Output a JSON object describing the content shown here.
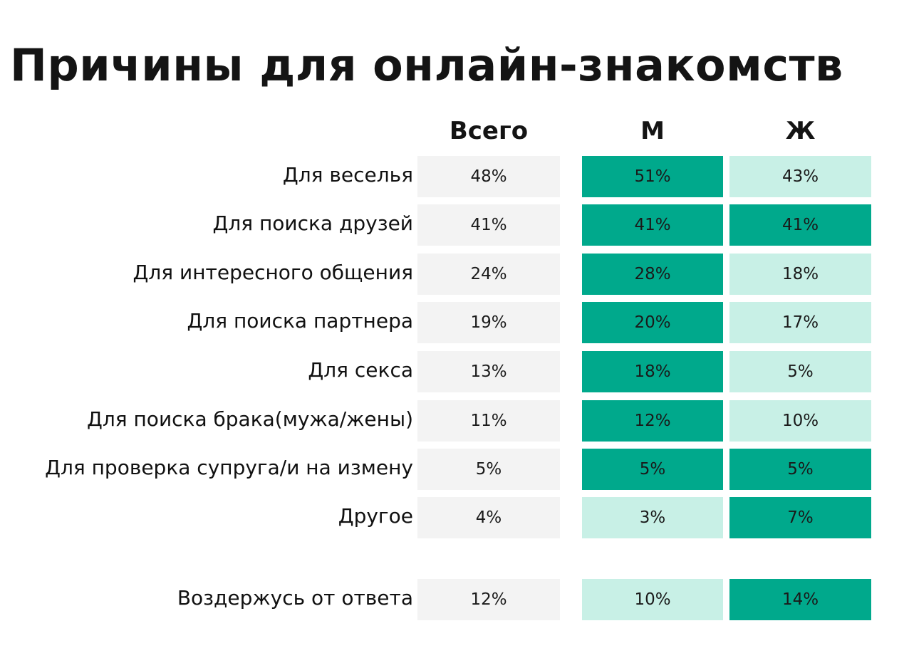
{
  "title": "Причины для онлайн-знакомств",
  "columns": [
    "Всего",
    "М",
    "Ж"
  ],
  "colors": {
    "total": "#f3f3f3",
    "high": "#00a98c",
    "low": "#c8f0e6"
  },
  "chart_data": {
    "type": "table",
    "title": "Причины для онлайн-знакомств",
    "columns": [
      "Всего",
      "М",
      "Ж"
    ],
    "rows": [
      {
        "label": "Для веселья",
        "values": [
          "48%",
          "51%",
          "43%"
        ],
        "highlight": [
          "total",
          "high",
          "low"
        ]
      },
      {
        "label": "Для поиска друзей",
        "values": [
          "41%",
          "41%",
          "41%"
        ],
        "highlight": [
          "total",
          "high",
          "high"
        ]
      },
      {
        "label": "Для интересного общения",
        "values": [
          "24%",
          "28%",
          "18%"
        ],
        "highlight": [
          "total",
          "high",
          "low"
        ]
      },
      {
        "label": "Для поиска партнера",
        "values": [
          "19%",
          "20%",
          "17%"
        ],
        "highlight": [
          "total",
          "high",
          "low"
        ]
      },
      {
        "label": "Для секса",
        "values": [
          "13%",
          "18%",
          "5%"
        ],
        "highlight": [
          "total",
          "high",
          "low"
        ]
      },
      {
        "label": "Для поиска брака(мужа/жены)",
        "values": [
          "11%",
          "12%",
          "10%"
        ],
        "highlight": [
          "total",
          "high",
          "low"
        ]
      },
      {
        "label": "Для проверка супруга/и на измену",
        "values": [
          "5%",
          "5%",
          "5%"
        ],
        "highlight": [
          "total",
          "high",
          "high"
        ]
      },
      {
        "label": "Другое",
        "values": [
          "4%",
          "3%",
          "7%"
        ],
        "highlight": [
          "total",
          "low",
          "high"
        ]
      },
      {
        "label": "Воздержусь от ответа",
        "values": [
          "12%",
          "10%",
          "14%"
        ],
        "highlight": [
          "total",
          "low",
          "high"
        ]
      }
    ]
  }
}
